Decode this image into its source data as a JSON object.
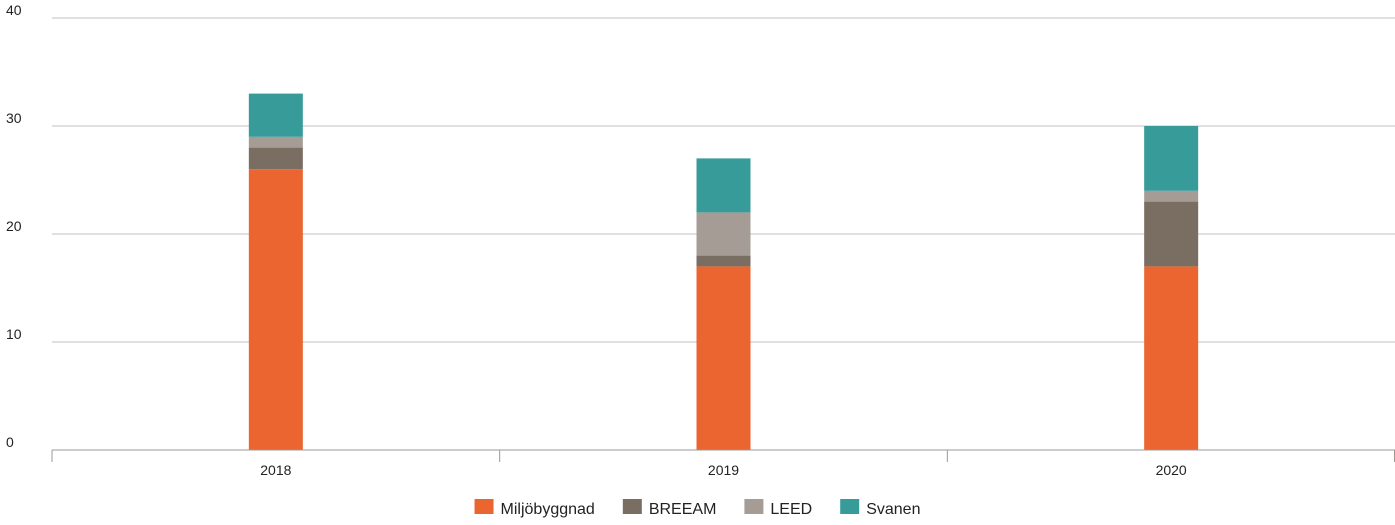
{
  "chart_data": {
    "type": "bar",
    "stacked": true,
    "categories": [
      "2018",
      "2019",
      "2020"
    ],
    "series": [
      {
        "name": "Miljöbyggnad",
        "values": [
          26,
          17,
          17
        ],
        "color": "#ea6530"
      },
      {
        "name": "BREEAM",
        "values": [
          2,
          1,
          6
        ],
        "color": "#7a6d62"
      },
      {
        "name": "LEED",
        "values": [
          1,
          4,
          1
        ],
        "color": "#a59c95"
      },
      {
        "name": "Svanen",
        "values": [
          4,
          5,
          6
        ],
        "color": "#379b9a"
      }
    ],
    "ylim": [
      0,
      40
    ],
    "yticks": [
      0,
      10,
      20,
      30,
      40
    ],
    "grid": true,
    "legend_position": "bottom-center",
    "gridline_color": "#c4c1bd",
    "axis_color": "#9d9894"
  }
}
